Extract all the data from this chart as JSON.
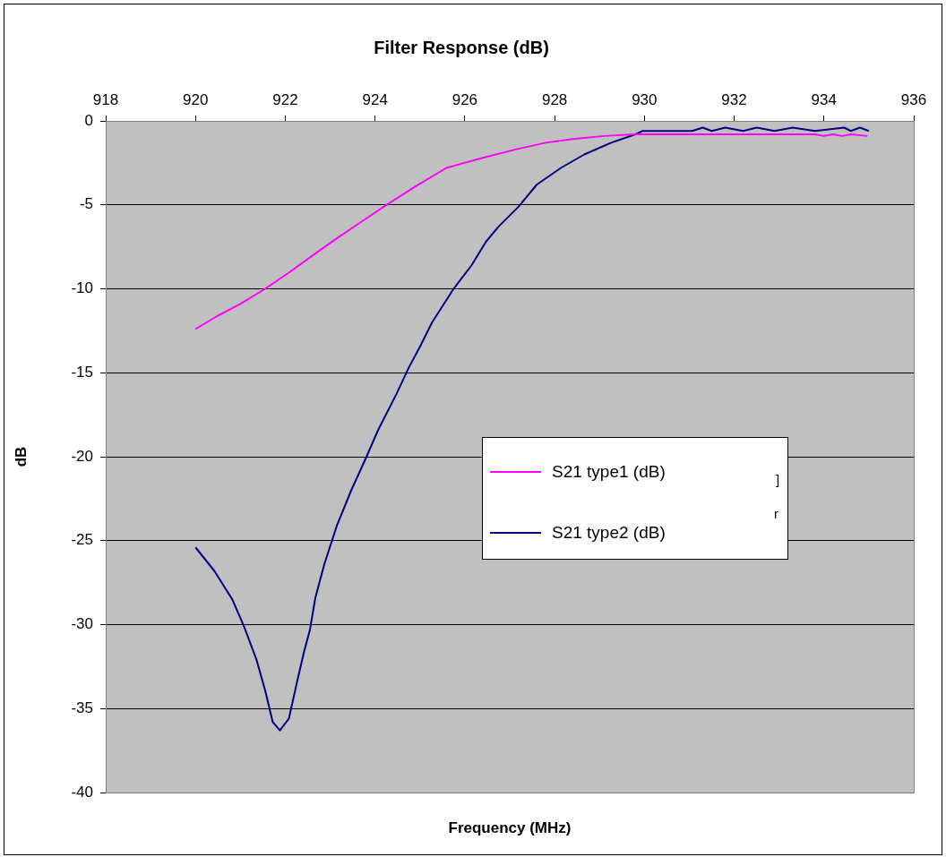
{
  "chart_data": {
    "type": "line",
    "title": "Filter Response (dB)",
    "xlabel": "Frequency (MHz)",
    "ylabel": "dB",
    "xlim": [
      918,
      936
    ],
    "xticks": [
      918,
      920,
      922,
      924,
      926,
      928,
      930,
      932,
      934,
      936
    ],
    "ylim": [
      -40,
      0
    ],
    "yticks": [
      -40,
      -35,
      -30,
      -25,
      -20,
      -15,
      -10,
      -5,
      0
    ],
    "grid": "y",
    "legend": "right",
    "marker": "none",
    "line_style": "solid",
    "annotations": [
      "]",
      "r"
    ],
    "series": [
      {
        "name": "S21 type1 (dB)",
        "color": "#ff00ff",
        "x": [
          920,
          920.5,
          921,
          921.55,
          922.1,
          922.67,
          923.2,
          923.7,
          924.2,
          924.9,
          925.59,
          926.4,
          927.13,
          927.8,
          928.45,
          929.1,
          929.8,
          931,
          932.5,
          933.8,
          934,
          934.2,
          934.4,
          934.6,
          934.97
        ],
        "values": [
          -12.4,
          -11.6,
          -10.9,
          -10.0,
          -9.0,
          -7.9,
          -6.9,
          -6.0,
          -5.1,
          -3.9,
          -2.8,
          -2.2,
          -1.7,
          -1.3,
          -1.07,
          -0.9,
          -0.8,
          -0.8,
          -0.8,
          -0.8,
          -0.9,
          -0.8,
          -0.9,
          -0.8,
          -0.9
        ]
      },
      {
        "name": "S21 type2 (dB)",
        "color": "#000080",
        "x": [
          920,
          920.42,
          920.82,
          921.08,
          921.36,
          921.56,
          921.72,
          921.88,
          922.08,
          922.28,
          922.42,
          922.55,
          922.67,
          922.87,
          923.15,
          923.47,
          923.81,
          924.07,
          924.47,
          924.75,
          925.01,
          925.27,
          925.75,
          926.15,
          926.47,
          926.75,
          927.2,
          927.6,
          928.14,
          928.66,
          929.26,
          929.8,
          929.96,
          931.06,
          931.3,
          931.5,
          931.8,
          932.2,
          932.5,
          932.9,
          933.3,
          933.8,
          934.45,
          934.6,
          934.8,
          935
        ],
        "values": [
          -25.4,
          -26.8,
          -28.5,
          -30.1,
          -32.1,
          -34.0,
          -35.8,
          -36.3,
          -35.6,
          -33.2,
          -31.6,
          -30.3,
          -28.4,
          -26.4,
          -24.1,
          -22.0,
          -20.0,
          -18.4,
          -16.3,
          -14.7,
          -13.4,
          -12.0,
          -10.0,
          -8.6,
          -7.2,
          -6.3,
          -5.1,
          -3.8,
          -2.8,
          -2.0,
          -1.3,
          -0.8,
          -0.6,
          -0.6,
          -0.4,
          -0.6,
          -0.4,
          -0.6,
          -0.4,
          -0.6,
          -0.4,
          -0.6,
          -0.4,
          -0.6,
          -0.4,
          -0.6
        ]
      }
    ]
  }
}
